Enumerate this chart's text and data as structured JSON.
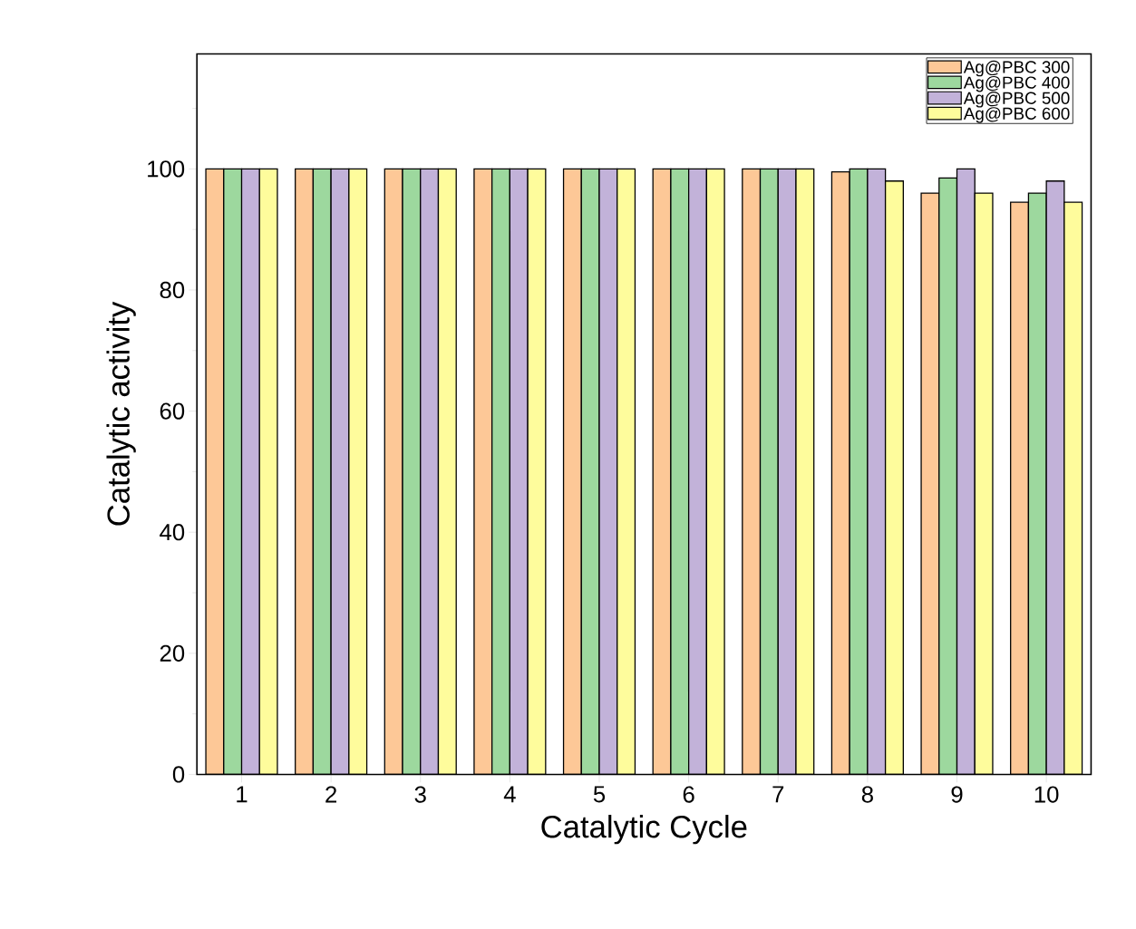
{
  "chart_data": {
    "type": "bar",
    "xlabel": "Catalytic Cycle",
    "ylabel": "Catalytic activity",
    "categories": [
      "1",
      "2",
      "3",
      "4",
      "5",
      "6",
      "7",
      "8",
      "9",
      "10"
    ],
    "series": [
      {
        "name": "Ag@PBC 300",
        "color": "#fdc897",
        "values": [
          100,
          100,
          100,
          100,
          100,
          100,
          100,
          99.5,
          96,
          94.5
        ]
      },
      {
        "name": "Ag@PBC 400",
        "color": "#9dd89e",
        "values": [
          100,
          100,
          100,
          100,
          100,
          100,
          100,
          100,
          98.5,
          96
        ]
      },
      {
        "name": "Ag@PBC 500",
        "color": "#c2b2d9",
        "values": [
          100,
          100,
          100,
          100,
          100,
          100,
          100,
          100,
          100,
          98
        ]
      },
      {
        "name": "Ag@PBC 600",
        "color": "#fefc9c",
        "values": [
          100,
          100,
          100,
          100,
          100,
          100,
          100,
          98,
          96,
          94.5
        ]
      }
    ],
    "ylim": [
      0,
      119
    ],
    "yticks": [
      0,
      {
        "value": 10,
        "label": null
      },
      20,
      {
        "value": 30,
        "label": null
      },
      40,
      {
        "value": 50,
        "label": null
      },
      60,
      {
        "value": 70,
        "label": null
      },
      80,
      {
        "value": 90,
        "label": null
      },
      100,
      {
        "value": 110,
        "label": null
      }
    ],
    "legend": "top right"
  }
}
